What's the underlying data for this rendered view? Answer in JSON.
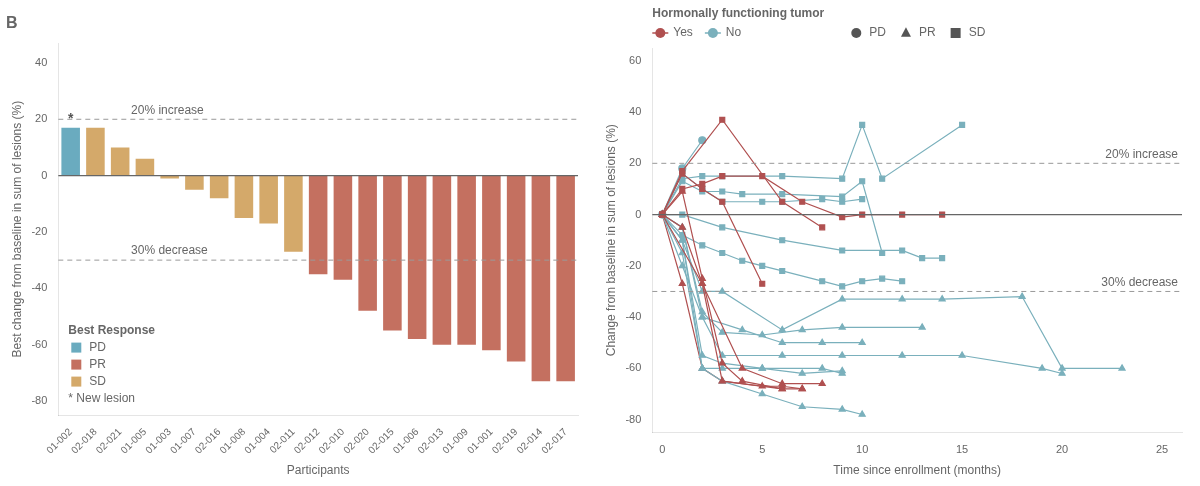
{
  "chart_data": [
    {
      "type": "bar",
      "title": "B",
      "categories": [
        "01-002",
        "02-018",
        "02-021",
        "01-005",
        "01-003",
        "01-007",
        "02-016",
        "01-008",
        "01-004",
        "02-011",
        "02-012",
        "02-010",
        "02-020",
        "02-015",
        "01-006",
        "02-013",
        "01-009",
        "01-001",
        "02-019",
        "02-014",
        "02-017"
      ],
      "values": [
        17,
        17,
        10,
        6,
        -1,
        -5,
        -8,
        -15,
        -17,
        -27,
        -35,
        -37,
        -48,
        -55,
        -58,
        -60,
        -60,
        -62,
        -66,
        -73,
        -73
      ],
      "colors": [
        "#6aabbf",
        "#d4a96a",
        "#d4a96a",
        "#d4a96a",
        "#d4a96a",
        "#d4a96a",
        "#d4a96a",
        "#d4a96a",
        "#d4a96a",
        "#d4a96a",
        "#c47060",
        "#c47060",
        "#c47060",
        "#c47060",
        "#c47060",
        "#c47060",
        "#c47060",
        "#c47060",
        "#c47060",
        "#c47060",
        "#c47060"
      ],
      "xlabel": "Participants",
      "ylabel": "Best change from baseline in sum of lesions (%)",
      "ylim": [
        -85,
        47
      ],
      "yticks": [
        -80,
        -60,
        -40,
        -20,
        0,
        20,
        40
      ],
      "grid": false,
      "legend": "lower left",
      "legends": [
        {
          "title": "Best Response",
          "items": [
            {
              "name": "PD",
              "color": "#6aabbf",
              "marker": "square"
            },
            {
              "name": "PR",
              "color": "#c47060",
              "marker": "square"
            },
            {
              "name": "SD",
              "color": "#d4a96a",
              "marker": "square"
            }
          ]
        }
      ],
      "reference_lines": [
        {
          "value": 20,
          "label": "20% increase",
          "line_style": "dashed"
        },
        {
          "value": -30,
          "label": "30% decrease",
          "line_style": "dashed"
        },
        {
          "value": 0,
          "line_style": "solid"
        }
      ],
      "new_lesion": [
        true,
        false,
        false,
        false,
        false,
        false,
        false,
        false,
        false,
        false,
        false,
        false,
        false,
        false,
        false,
        false,
        false,
        false,
        false,
        false,
        false
      ],
      "new_lesion_mark": "*",
      "new_lesion_note": "* New lesion"
    },
    {
      "type": "line",
      "xlabel": "Time since enrollment (months)",
      "ylabel": "Change from baseline in sum of lesions (%)",
      "xlim": [
        -0.5,
        26
      ],
      "xticks": [
        0,
        5,
        10,
        15,
        20,
        25
      ],
      "ylim": [
        -85,
        65
      ],
      "yticks": [
        -80,
        -60,
        -40,
        -20,
        0,
        20,
        40,
        60
      ],
      "grid": false,
      "legend": "top",
      "legends": [
        {
          "title": "Hormonally functioning tumor",
          "items": [
            {
              "name": "Yes",
              "color": "#b05050",
              "marker": "circle",
              "line_style": "solid"
            },
            {
              "name": "No",
              "color": "#7ab0bc",
              "marker": "circle",
              "line_style": "solid"
            }
          ]
        },
        {
          "items": [
            {
              "name": "PD",
              "color": "#555555",
              "marker": "circle",
              "line_style": "none"
            },
            {
              "name": "PR",
              "color": "#555555",
              "marker": "triangle",
              "line_style": "none"
            },
            {
              "name": "SD",
              "color": "#555555",
              "marker": "square",
              "line_style": "none"
            }
          ]
        }
      ],
      "reference_lines": [
        {
          "value": 20,
          "label": "20% increase",
          "line_style": "dashed"
        },
        {
          "value": -30,
          "label": "30% decrease",
          "line_style": "dashed"
        },
        {
          "value": 0,
          "line_style": "solid"
        }
      ],
      "series": [
        {
          "hormone": "Yes",
          "response": "SD",
          "x": [
            0,
            1,
            2,
            3,
            5,
            7,
            9,
            10,
            12,
            14
          ],
          "values": [
            0,
            10,
            12,
            15,
            15,
            5,
            -1,
            0,
            0,
            0
          ]
        },
        {
          "hormone": "Yes",
          "response": "SD",
          "x": [
            0,
            1,
            3,
            6,
            8
          ],
          "values": [
            0,
            17,
            37,
            5,
            -5
          ]
        },
        {
          "hormone": "Yes",
          "response": "SD",
          "x": [
            0,
            1,
            2,
            3,
            5
          ],
          "values": [
            0,
            16,
            10,
            5,
            -27
          ]
        },
        {
          "hormone": "Yes",
          "response": "PR",
          "x": [
            0,
            1,
            2,
            3,
            4,
            6
          ],
          "values": [
            0,
            9,
            -25,
            -58,
            -65,
            -68
          ]
        },
        {
          "hormone": "Yes",
          "response": "PR",
          "x": [
            0,
            1,
            2,
            3,
            6,
            7
          ],
          "values": [
            0,
            -5,
            -27,
            -65,
            -68,
            -68
          ]
        },
        {
          "hormone": "Yes",
          "response": "PR",
          "x": [
            0,
            2,
            4,
            6,
            8
          ],
          "values": [
            0,
            -27,
            -60,
            -66,
            -66
          ]
        },
        {
          "hormone": "No",
          "response": "SD",
          "x": [
            0,
            1,
            2,
            3,
            6,
            9,
            10,
            11,
            15
          ],
          "values": [
            0,
            14,
            15,
            15,
            15,
            14,
            35,
            14,
            35
          ]
        },
        {
          "hormone": "No",
          "response": "SD",
          "x": [
            0,
            1,
            2,
            3,
            4,
            6,
            9,
            10,
            11
          ],
          "values": [
            0,
            13,
            9,
            9,
            8,
            8,
            7,
            13,
            -15
          ]
        },
        {
          "hormone": "No",
          "response": "SD",
          "x": [
            0,
            1,
            2,
            3,
            5,
            6,
            8,
            9,
            10
          ],
          "values": [
            0,
            16,
            10,
            5,
            5,
            5,
            6,
            5,
            6
          ]
        },
        {
          "hormone": "No",
          "response": "SD",
          "x": [
            0,
            1,
            2,
            3,
            4,
            5,
            6,
            8,
            9,
            10,
            11,
            12
          ],
          "values": [
            0,
            -8,
            -12,
            -15,
            -18,
            -20,
            -22,
            -26,
            -28,
            -26,
            -25,
            -26
          ]
        },
        {
          "hormone": "No",
          "response": "SD",
          "x": [
            0,
            1,
            3,
            6,
            9,
            12,
            13,
            14
          ],
          "values": [
            0,
            0,
            -5,
            -10,
            -14,
            -14,
            -17,
            -17
          ]
        },
        {
          "hormone": "No",
          "response": "PR",
          "x": [
            0,
            1,
            2,
            3,
            6,
            9,
            12,
            14,
            18,
            20,
            23
          ],
          "values": [
            0,
            -10,
            -30,
            -30,
            -45,
            -33,
            -33,
            -33,
            -32,
            -60,
            -60
          ]
        },
        {
          "hormone": "No",
          "response": "PR",
          "x": [
            0,
            1,
            2,
            3,
            6,
            9,
            12,
            15,
            19,
            20
          ],
          "values": [
            0,
            -5,
            -40,
            -55,
            -55,
            -55,
            -55,
            -55,
            -60,
            -62
          ]
        },
        {
          "hormone": "No",
          "response": "PR",
          "x": [
            0,
            1,
            2,
            3,
            5,
            8,
            9
          ],
          "values": [
            0,
            -10,
            -55,
            -58,
            -60,
            -60,
            -62
          ]
        },
        {
          "hormone": "No",
          "response": "PR",
          "x": [
            0,
            1,
            2,
            3,
            5,
            7,
            9
          ],
          "values": [
            0,
            -15,
            -60,
            -60,
            -60,
            -62,
            -61
          ]
        },
        {
          "hormone": "No",
          "response": "PR",
          "x": [
            0,
            1,
            2,
            4,
            6,
            8,
            10
          ],
          "values": [
            0,
            -20,
            -40,
            -45,
            -50,
            -50,
            -50
          ]
        },
        {
          "hormone": "No",
          "response": "PR",
          "x": [
            0,
            1,
            2,
            3,
            5,
            7,
            9,
            13
          ],
          "values": [
            0,
            -5,
            -38,
            -46,
            -47,
            -45,
            -44,
            -44
          ]
        },
        {
          "hormone": "No",
          "response": "PR",
          "x": [
            0,
            1,
            2,
            3,
            5,
            7,
            9,
            10
          ],
          "values": [
            0,
            -10,
            -60,
            -65,
            -70,
            -75,
            -76,
            -78
          ]
        },
        {
          "hormone": "No",
          "response": "PD",
          "x": [
            0,
            1,
            2
          ],
          "values": [
            0,
            18,
            29
          ]
        },
        {
          "hormone": "Yes",
          "response": "PR",
          "x": [
            0,
            1,
            2,
            3,
            5,
            6,
            7
          ],
          "values": [
            0,
            -27,
            -60,
            -65,
            -67,
            -67,
            -68
          ]
        }
      ]
    }
  ]
}
